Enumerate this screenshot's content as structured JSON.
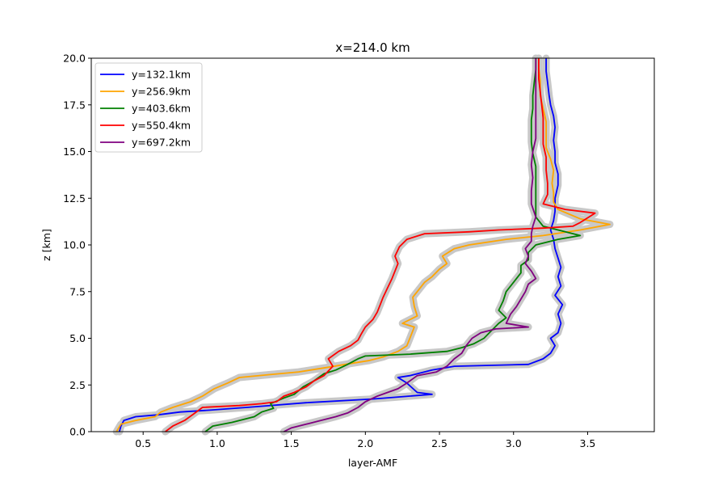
{
  "chart_data": {
    "type": "line",
    "title": "x=214.0 km",
    "xlabel": "layer-AMF",
    "ylabel": "z [km]",
    "xlim": [
      0.15,
      3.95
    ],
    "ylim": [
      0,
      20
    ],
    "xticks": [
      0.5,
      1.0,
      1.5,
      2.0,
      2.5,
      3.0,
      3.5
    ],
    "xtick_labels": [
      "0.5",
      "1.0",
      "1.5",
      "2.0",
      "2.5",
      "3.0",
      "3.5"
    ],
    "yticks": [
      0.0,
      2.5,
      5.0,
      7.5,
      10.0,
      12.5,
      15.0,
      17.5,
      20.0
    ],
    "ytick_labels": [
      "0.0",
      "2.5",
      "5.0",
      "7.5",
      "10.0",
      "12.5",
      "15.0",
      "17.5",
      "20.0"
    ],
    "grid": false,
    "legend_position": "upper-left",
    "uncertainty_band_color": "#c8c8c8",
    "series": [
      {
        "name": "y=132.1km",
        "color": "#0000ff",
        "points": [
          [
            0.34,
            0
          ],
          [
            0.35,
            0.3
          ],
          [
            0.37,
            0.6
          ],
          [
            0.45,
            0.8
          ],
          [
            0.6,
            0.9
          ],
          [
            0.75,
            1.05
          ],
          [
            0.95,
            1.15
          ],
          [
            1.2,
            1.3
          ],
          [
            1.6,
            1.55
          ],
          [
            2.05,
            1.75
          ],
          [
            2.45,
            2.0
          ],
          [
            2.35,
            2.1
          ],
          [
            2.28,
            2.6
          ],
          [
            2.22,
            2.9
          ],
          [
            2.3,
            3.0
          ],
          [
            2.45,
            3.3
          ],
          [
            2.6,
            3.5
          ],
          [
            3.1,
            3.6
          ],
          [
            3.2,
            3.9
          ],
          [
            3.25,
            4.2
          ],
          [
            3.28,
            4.6
          ],
          [
            3.25,
            5.0
          ],
          [
            3.3,
            5.3
          ],
          [
            3.32,
            5.8
          ],
          [
            3.3,
            6.3
          ],
          [
            3.33,
            6.8
          ],
          [
            3.28,
            7.3
          ],
          [
            3.32,
            7.8
          ],
          [
            3.3,
            8.3
          ],
          [
            3.32,
            8.8
          ],
          [
            3.3,
            9.3
          ],
          [
            3.28,
            9.8
          ],
          [
            3.27,
            10.3
          ],
          [
            3.25,
            10.8
          ],
          [
            3.27,
            11.3
          ],
          [
            3.28,
            11.8
          ],
          [
            3.28,
            12.5
          ],
          [
            3.3,
            13.2
          ],
          [
            3.3,
            13.8
          ],
          [
            3.28,
            14.4
          ],
          [
            3.28,
            15.0
          ],
          [
            3.27,
            15.6
          ],
          [
            3.28,
            16.3
          ],
          [
            3.27,
            16.9
          ],
          [
            3.25,
            17.5
          ],
          [
            3.24,
            18.0
          ],
          [
            3.23,
            18.7
          ],
          [
            3.22,
            19.3
          ],
          [
            3.22,
            20
          ]
        ]
      },
      {
        "name": "y=256.9km",
        "color": "#ffa500",
        "points": [
          [
            0.32,
            0
          ],
          [
            0.35,
            0.4
          ],
          [
            0.45,
            0.6
          ],
          [
            0.58,
            0.8
          ],
          [
            0.62,
            1.05
          ],
          [
            0.7,
            1.3
          ],
          [
            0.82,
            1.6
          ],
          [
            0.9,
            1.9
          ],
          [
            0.98,
            2.3
          ],
          [
            1.07,
            2.6
          ],
          [
            1.15,
            2.9
          ],
          [
            1.35,
            3.05
          ],
          [
            1.55,
            3.2
          ],
          [
            1.75,
            3.45
          ],
          [
            1.9,
            3.65
          ],
          [
            2.02,
            3.8
          ],
          [
            2.12,
            4.0
          ],
          [
            2.22,
            4.3
          ],
          [
            2.28,
            4.6
          ],
          [
            2.3,
            5.0
          ],
          [
            2.33,
            5.6
          ],
          [
            2.25,
            5.8
          ],
          [
            2.35,
            6.2
          ],
          [
            2.33,
            6.7
          ],
          [
            2.32,
            7.2
          ],
          [
            2.36,
            7.6
          ],
          [
            2.4,
            8.0
          ],
          [
            2.45,
            8.3
          ],
          [
            2.5,
            8.7
          ],
          [
            2.55,
            9.0
          ],
          [
            2.52,
            9.4
          ],
          [
            2.6,
            9.8
          ],
          [
            2.7,
            10.0
          ],
          [
            2.95,
            10.3
          ],
          [
            3.2,
            10.5
          ],
          [
            3.45,
            10.8
          ],
          [
            3.65,
            11.1
          ],
          [
            3.45,
            11.4
          ],
          [
            3.3,
            11.9
          ],
          [
            3.27,
            12.3
          ],
          [
            3.27,
            12.8
          ],
          [
            3.26,
            13.3
          ],
          [
            3.27,
            14.0
          ],
          [
            3.25,
            14.6
          ],
          [
            3.22,
            15.2
          ],
          [
            3.22,
            15.8
          ],
          [
            3.22,
            16.6
          ],
          [
            3.2,
            17.3
          ],
          [
            3.18,
            18.0
          ],
          [
            3.18,
            18.8
          ],
          [
            3.17,
            19.5
          ],
          [
            3.17,
            20
          ]
        ]
      },
      {
        "name": "y=403.6km",
        "color": "#008000",
        "points": [
          [
            0.92,
            0
          ],
          [
            0.97,
            0.3
          ],
          [
            1.1,
            0.5
          ],
          [
            1.25,
            0.8
          ],
          [
            1.3,
            1.05
          ],
          [
            1.38,
            1.25
          ],
          [
            1.36,
            1.5
          ],
          [
            1.45,
            1.8
          ],
          [
            1.52,
            2.0
          ],
          [
            1.58,
            2.4
          ],
          [
            1.65,
            2.7
          ],
          [
            1.72,
            3.1
          ],
          [
            1.8,
            3.3
          ],
          [
            1.88,
            3.6
          ],
          [
            1.95,
            3.9
          ],
          [
            2.0,
            4.05
          ],
          [
            2.3,
            4.15
          ],
          [
            2.55,
            4.3
          ],
          [
            2.65,
            4.5
          ],
          [
            2.73,
            4.7
          ],
          [
            2.8,
            5.0
          ],
          [
            2.85,
            5.4
          ],
          [
            2.9,
            5.8
          ],
          [
            2.95,
            6.1
          ],
          [
            2.9,
            6.5
          ],
          [
            2.93,
            7.0
          ],
          [
            2.95,
            7.5
          ],
          [
            3.0,
            8.0
          ],
          [
            3.05,
            8.5
          ],
          [
            3.05,
            8.9
          ],
          [
            3.1,
            9.2
          ],
          [
            3.1,
            9.6
          ],
          [
            3.15,
            10.0
          ],
          [
            3.3,
            10.3
          ],
          [
            3.45,
            10.5
          ],
          [
            3.35,
            10.7
          ],
          [
            3.2,
            11.0
          ],
          [
            3.15,
            11.5
          ],
          [
            3.15,
            12.1
          ],
          [
            3.15,
            12.8
          ],
          [
            3.15,
            13.5
          ],
          [
            3.15,
            14.2
          ],
          [
            3.13,
            14.9
          ],
          [
            3.12,
            15.5
          ],
          [
            3.12,
            16.1
          ],
          [
            3.12,
            16.7
          ],
          [
            3.13,
            17.3
          ],
          [
            3.13,
            18.0
          ],
          [
            3.14,
            18.7
          ],
          [
            3.15,
            19.4
          ],
          [
            3.15,
            20
          ]
        ]
      },
      {
        "name": "y=550.4km",
        "color": "#ff0000",
        "points": [
          [
            0.65,
            0
          ],
          [
            0.7,
            0.3
          ],
          [
            0.78,
            0.6
          ],
          [
            0.85,
            1.0
          ],
          [
            0.9,
            1.3
          ],
          [
            1.15,
            1.4
          ],
          [
            1.3,
            1.5
          ],
          [
            1.4,
            1.6
          ],
          [
            1.45,
            1.9
          ],
          [
            1.52,
            2.1
          ],
          [
            1.6,
            2.4
          ],
          [
            1.65,
            2.7
          ],
          [
            1.72,
            3.0
          ],
          [
            1.78,
            3.5
          ],
          [
            1.75,
            3.9
          ],
          [
            1.82,
            4.3
          ],
          [
            1.9,
            4.6
          ],
          [
            1.95,
            4.9
          ],
          [
            1.97,
            5.2
          ],
          [
            2.0,
            5.6
          ],
          [
            2.05,
            6.0
          ],
          [
            2.08,
            6.4
          ],
          [
            2.1,
            6.8
          ],
          [
            2.12,
            7.2
          ],
          [
            2.15,
            7.7
          ],
          [
            2.18,
            8.2
          ],
          [
            2.2,
            8.6
          ],
          [
            2.22,
            9.0
          ],
          [
            2.2,
            9.4
          ],
          [
            2.23,
            9.9
          ],
          [
            2.28,
            10.3
          ],
          [
            2.4,
            10.6
          ],
          [
            2.7,
            10.7
          ],
          [
            2.9,
            10.8
          ],
          [
            3.2,
            10.9
          ],
          [
            3.4,
            11.0
          ],
          [
            3.45,
            11.2
          ],
          [
            3.55,
            11.7
          ],
          [
            3.35,
            11.9
          ],
          [
            3.2,
            12.2
          ],
          [
            3.23,
            12.7
          ],
          [
            3.23,
            13.3
          ],
          [
            3.22,
            14.0
          ],
          [
            3.22,
            14.7
          ],
          [
            3.2,
            15.4
          ],
          [
            3.2,
            16.1
          ],
          [
            3.2,
            16.8
          ],
          [
            3.19,
            17.5
          ],
          [
            3.18,
            18.2
          ],
          [
            3.17,
            18.9
          ],
          [
            3.17,
            19.6
          ],
          [
            3.17,
            20
          ]
        ]
      },
      {
        "name": "y=697.2km",
        "color": "#800080",
        "points": [
          [
            1.45,
            0
          ],
          [
            1.5,
            0.2
          ],
          [
            1.6,
            0.4
          ],
          [
            1.7,
            0.6
          ],
          [
            1.8,
            0.8
          ],
          [
            1.88,
            1.0
          ],
          [
            1.95,
            1.3
          ],
          [
            2.0,
            1.6
          ],
          [
            2.08,
            1.9
          ],
          [
            2.15,
            2.1
          ],
          [
            2.22,
            2.3
          ],
          [
            2.28,
            2.6
          ],
          [
            2.35,
            3.0
          ],
          [
            2.48,
            3.2
          ],
          [
            2.55,
            3.5
          ],
          [
            2.6,
            3.9
          ],
          [
            2.65,
            4.2
          ],
          [
            2.68,
            4.6
          ],
          [
            2.72,
            5.0
          ],
          [
            2.78,
            5.3
          ],
          [
            2.88,
            5.5
          ],
          [
            3.1,
            5.6
          ],
          [
            2.95,
            5.8
          ],
          [
            2.98,
            6.3
          ],
          [
            3.02,
            6.7
          ],
          [
            3.05,
            7.1
          ],
          [
            3.08,
            7.5
          ],
          [
            3.1,
            7.9
          ],
          [
            3.15,
            8.2
          ],
          [
            3.12,
            8.6
          ],
          [
            3.08,
            9.0
          ],
          [
            3.1,
            9.4
          ],
          [
            3.08,
            9.8
          ],
          [
            3.12,
            10.2
          ],
          [
            3.12,
            10.6
          ],
          [
            3.13,
            11.0
          ],
          [
            3.15,
            11.5
          ],
          [
            3.12,
            12.2
          ],
          [
            3.12,
            12.9
          ],
          [
            3.13,
            13.6
          ],
          [
            3.12,
            14.3
          ],
          [
            3.13,
            15.0
          ],
          [
            3.15,
            15.7
          ],
          [
            3.15,
            16.4
          ],
          [
            3.15,
            17.1
          ],
          [
            3.15,
            17.8
          ],
          [
            3.15,
            18.5
          ],
          [
            3.15,
            19.2
          ],
          [
            3.15,
            20
          ]
        ]
      }
    ]
  }
}
